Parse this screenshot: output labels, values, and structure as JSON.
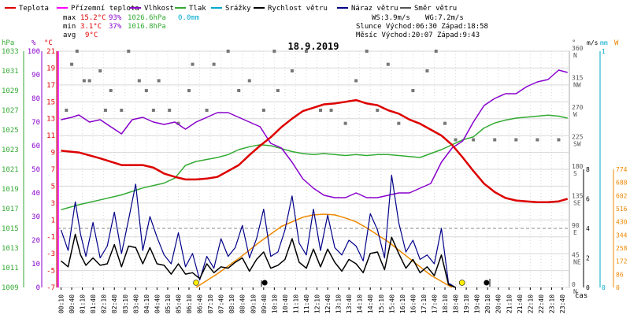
{
  "legend": [
    {
      "label": "Teplota",
      "color": "#dd0000"
    },
    {
      "label": "Přízemní teplota",
      "color": "#ff00ff"
    },
    {
      "label": "Vlhkost",
      "color": "#8800cc"
    },
    {
      "label": "Tlak",
      "color": "#33aa33"
    },
    {
      "label": "Srážky",
      "color": "#00aacc"
    },
    {
      "label": "Rychlost větru",
      "color": "#000000"
    },
    {
      "label": "Náraz větru",
      "color": "#000088"
    },
    {
      "label": "Směr větru",
      "color": "#555555"
    }
  ],
  "stats": {
    "max_label": "max",
    "max_temp": "15.2°C",
    "max_hum": "93%",
    "max_press": "1026.6hPa",
    "max_rain": "0.0mm",
    "min_label": "min",
    "min_temp": "3.1°C",
    "min_hum": "37%",
    "min_press": "1016.8hPa",
    "avg_label": "avg",
    "avg_temp": "9°C",
    "ws": "WS:3.9m/s",
    "wg": "WG:7.2m/s",
    "sun": "Slunce Východ:06:30   Západ:18:58",
    "moon": "Měsíc  Východ:20:07   Západ:9:43"
  },
  "axis_units": {
    "hpa": "hPa",
    "pct": "%",
    "degc": "°C",
    "deg": "°",
    "ms": "m/s",
    "mm": "mm",
    "w": "W",
    "cas": "čas"
  },
  "chart_data": {
    "type": "line",
    "title": "18.9.2019",
    "x_ticks": [
      "00:10",
      "00:40",
      "01:10",
      "01:40",
      "02:10",
      "02:40",
      "03:10",
      "03:40",
      "04:10",
      "04:40",
      "05:10",
      "05:40",
      "06:10",
      "06:40",
      "07:10",
      "07:40",
      "08:10",
      "08:40",
      "09:10",
      "09:40",
      "10:10",
      "10:40",
      "11:10",
      "11:40",
      "12:10",
      "12:40",
      "13:10",
      "13:40",
      "14:10",
      "14:40",
      "15:10",
      "15:40",
      "16:10",
      "16:40",
      "17:10",
      "17:40",
      "18:10",
      "18:40",
      "19:10",
      "19:40",
      "20:10",
      "20:40",
      "21:10",
      "21:40",
      "22:10",
      "22:40",
      "23:10",
      "23:40"
    ],
    "y_axes": {
      "pressure_hpa": [
        "1033",
        "1031",
        "1029",
        "1027",
        "1025",
        "1023",
        "1021",
        "1019",
        "1017",
        "1015",
        "1013",
        "1011",
        "1009"
      ],
      "humidity_pct": [
        "100",
        "90",
        "80",
        "70",
        "60",
        "50",
        "40",
        "30",
        "20",
        "10",
        "0"
      ],
      "temperature_c": [
        "21",
        "19",
        "17",
        "15",
        "13",
        "11",
        "9",
        "7",
        "5",
        "3",
        "1",
        "-1",
        "-3",
        "-5",
        "-7"
      ],
      "direction": [
        "360 N",
        "315 NW",
        "270 W",
        "225 SW",
        "180 S",
        "135 SE",
        "90 E",
        "45 NE",
        "0 N"
      ],
      "wind_ms": [
        "8",
        "6",
        "4",
        "2",
        "0"
      ],
      "rain_mm": [
        "1",
        "0"
      ],
      "radiation_w": [
        "774",
        "688",
        "602",
        "516",
        "430",
        "344",
        "258",
        "172",
        "86",
        "0"
      ]
    },
    "ylim_temp": [
      -7,
      21
    ],
    "series": [
      {
        "name": "Teplota",
        "color": "#dd0000",
        "x": [
          "00:10",
          "01:00",
          "02:00",
          "03:00",
          "04:00",
          "04:30",
          "05:00",
          "05:30",
          "06:00",
          "06:30",
          "07:00",
          "07:30",
          "08:00",
          "08:30",
          "09:00",
          "09:30",
          "10:00",
          "10:30",
          "11:00",
          "11:30",
          "12:00",
          "12:30",
          "13:00",
          "13:30",
          "14:00",
          "14:30",
          "15:00",
          "15:30",
          "16:00",
          "16:30",
          "17:00",
          "17:30",
          "18:00",
          "18:30",
          "19:00",
          "19:30",
          "20:00",
          "20:30",
          "21:00",
          "21:30",
          "22:00",
          "22:30",
          "23:00",
          "23:30",
          "23:55"
        ],
        "y": [
          9.2,
          9.0,
          8.3,
          7.5,
          7.5,
          7.2,
          6.5,
          6.1,
          5.8,
          5.8,
          5.9,
          6.1,
          6.8,
          7.5,
          8.7,
          9.8,
          10.8,
          12.0,
          13.0,
          13.9,
          14.3,
          14.7,
          14.8,
          15.0,
          15.2,
          14.8,
          14.6,
          14.0,
          13.6,
          12.9,
          12.4,
          11.7,
          11.0,
          9.9,
          8.4,
          6.8,
          5.3,
          4.3,
          3.6,
          3.3,
          3.2,
          3.1,
          3.1,
          3.2,
          3.5
        ]
      },
      {
        "name": "Vlhkost",
        "color": "#8800cc",
        "x": [
          "00:10",
          "00:40",
          "01:00",
          "01:30",
          "02:00",
          "02:30",
          "03:00",
          "03:30",
          "04:00",
          "04:30",
          "05:00",
          "05:30",
          "06:00",
          "06:30",
          "07:00",
          "07:30",
          "08:00",
          "08:30",
          "09:00",
          "09:30",
          "10:00",
          "10:30",
          "11:00",
          "11:30",
          "12:00",
          "12:30",
          "13:00",
          "13:30",
          "14:00",
          "14:30",
          "15:00",
          "15:30",
          "16:00",
          "16:30",
          "17:00",
          "17:30",
          "18:00",
          "18:30",
          "19:00",
          "19:30",
          "20:00",
          "20:30",
          "21:00",
          "21:30",
          "22:00",
          "22:30",
          "23:00",
          "23:30",
          "23:55"
        ],
        "y": [
          71,
          72,
          73,
          70,
          71,
          68,
          65,
          71,
          72,
          70,
          69,
          70,
          67,
          70,
          72,
          74,
          74,
          72,
          70,
          68,
          61,
          59,
          53,
          46,
          42,
          39,
          38,
          38,
          40,
          38,
          38,
          39,
          40,
          40,
          42,
          44,
          53,
          59,
          62,
          70,
          77,
          80,
          82,
          82,
          85,
          87,
          88,
          92,
          91
        ]
      },
      {
        "name": "Tlak",
        "color": "#33aa33",
        "x": [
          "00:10",
          "01:00",
          "02:00",
          "03:00",
          "04:00",
          "05:00",
          "05:30",
          "06:00",
          "06:30",
          "07:00",
          "07:30",
          "08:00",
          "08:30",
          "09:00",
          "09:30",
          "10:00",
          "10:30",
          "11:00",
          "11:30",
          "12:00",
          "12:30",
          "13:00",
          "13:30",
          "14:00",
          "14:30",
          "15:00",
          "15:30",
          "16:00",
          "16:30",
          "17:00",
          "17:30",
          "18:00",
          "18:30",
          "19:00",
          "19:30",
          "20:00",
          "20:30",
          "21:00",
          "21:30",
          "22:00",
          "22:30",
          "23:00",
          "23:30",
          "23:55"
        ],
        "y": [
          1016.9,
          1017.4,
          1017.9,
          1018.4,
          1019.1,
          1019.6,
          1020.1,
          1021.4,
          1021.8,
          1022.0,
          1022.2,
          1022.5,
          1023.0,
          1023.3,
          1023.5,
          1023.4,
          1023.1,
          1022.8,
          1022.6,
          1022.5,
          1022.6,
          1022.5,
          1022.4,
          1022.5,
          1022.4,
          1022.5,
          1022.5,
          1022.4,
          1022.3,
          1022.2,
          1022.6,
          1023.0,
          1023.5,
          1024.0,
          1024.3,
          1025.2,
          1025.7,
          1026.0,
          1026.2,
          1026.3,
          1026.4,
          1026.5,
          1026.4,
          1026.2
        ]
      },
      {
        "name": "Náraz větru",
        "color": "#000088",
        "x": [
          "00:10",
          "00:30",
          "00:50",
          "01:05",
          "01:20",
          "01:40",
          "02:00",
          "02:20",
          "02:40",
          "03:00",
          "03:20",
          "03:40",
          "04:00",
          "04:20",
          "04:40",
          "05:00",
          "05:20",
          "05:40",
          "06:00",
          "06:20",
          "06:40",
          "07:00",
          "07:20",
          "07:40",
          "08:00",
          "08:20",
          "08:40",
          "09:00",
          "09:20",
          "09:40",
          "10:00",
          "10:20",
          "10:40",
          "11:00",
          "11:20",
          "11:40",
          "12:00",
          "12:20",
          "12:40",
          "13:00",
          "13:20",
          "13:40",
          "14:00",
          "14:20",
          "14:40",
          "15:00",
          "15:20",
          "15:40",
          "16:00",
          "16:20",
          "16:40",
          "17:00",
          "17:20",
          "17:40",
          "18:00",
          "18:20",
          "18:40"
        ],
        "y": [
          3.9,
          2.5,
          5.8,
          3.6,
          2.1,
          4.4,
          2.0,
          2.8,
          5.1,
          2.3,
          4.6,
          7.0,
          2.5,
          4.8,
          3.4,
          2.2,
          1.6,
          3.7,
          1.4,
          2.3,
          0.5,
          2.1,
          1.3,
          3.3,
          2.1,
          2.7,
          4.2,
          2.0,
          3.3,
          5.3,
          2.1,
          2.4,
          3.9,
          6.2,
          3.0,
          2.2,
          5.3,
          2.5,
          4.9,
          2.7,
          2.2,
          3.2,
          2.8,
          1.8,
          5.0,
          3.9,
          2.0,
          7.6,
          4.4,
          2.4,
          3.2,
          1.9,
          2.2,
          1.6,
          4.0,
          0.3,
          0.0
        ]
      },
      {
        "name": "Rychlost větru",
        "color": "#000000",
        "x": [
          "00:10",
          "00:30",
          "00:50",
          "01:05",
          "01:20",
          "01:40",
          "02:00",
          "02:20",
          "02:40",
          "03:00",
          "03:20",
          "03:40",
          "04:00",
          "04:20",
          "04:40",
          "05:00",
          "05:20",
          "05:40",
          "06:00",
          "06:20",
          "06:40",
          "07:00",
          "07:20",
          "07:40",
          "08:00",
          "08:20",
          "08:40",
          "09:00",
          "09:20",
          "09:40",
          "10:00",
          "10:20",
          "10:40",
          "11:00",
          "11:20",
          "11:40",
          "12:00",
          "12:20",
          "12:40",
          "13:00",
          "13:20",
          "13:40",
          "14:00",
          "14:20",
          "14:40",
          "15:00",
          "15:20",
          "15:40",
          "16:00",
          "16:20",
          "16:40",
          "17:00",
          "17:20",
          "17:40",
          "18:00",
          "18:20",
          "18:40"
        ],
        "y": [
          1.8,
          1.4,
          3.6,
          2.2,
          1.5,
          2.0,
          1.5,
          1.6,
          2.9,
          1.4,
          2.8,
          2.7,
          1.6,
          2.7,
          1.6,
          1.5,
          0.9,
          1.6,
          0.9,
          1.0,
          0.6,
          1.6,
          1.0,
          1.4,
          1.3,
          1.7,
          2.0,
          1.1,
          1.9,
          2.4,
          1.3,
          1.5,
          1.9,
          3.3,
          1.7,
          1.3,
          2.6,
          1.4,
          2.6,
          1.7,
          1.1,
          1.9,
          1.6,
          1.0,
          2.3,
          2.4,
          1.2,
          3.4,
          2.3,
          1.3,
          1.9,
          1.0,
          1.4,
          0.8,
          2.2,
          0.2,
          0.0
        ]
      },
      {
        "name": "Radiation",
        "color": "#ee8800",
        "x": [
          "06:30",
          "07:30",
          "08:30",
          "09:30",
          "10:30",
          "11:30",
          "12:00",
          "12:30",
          "13:00",
          "13:30",
          "14:00",
          "14:30",
          "15:30",
          "16:30",
          "17:30",
          "18:30"
        ],
        "y": [
          0,
          90,
          190,
          300,
          400,
          460,
          475,
          480,
          475,
          455,
          430,
          390,
          300,
          190,
          80,
          0
        ]
      }
    ],
    "wind_direction_deg": [
      {
        "x": "00:25",
        "y": 270
      },
      {
        "x": "00:40",
        "y": 340
      },
      {
        "x": "00:55",
        "y": 360
      },
      {
        "x": "01:15",
        "y": 315
      },
      {
        "x": "01:30",
        "y": 315
      },
      {
        "x": "02:00",
        "y": 330
      },
      {
        "x": "02:15",
        "y": 270
      },
      {
        "x": "02:30",
        "y": 300
      },
      {
        "x": "03:00",
        "y": 270
      },
      {
        "x": "03:20",
        "y": 360
      },
      {
        "x": "03:50",
        "y": 315
      },
      {
        "x": "04:10",
        "y": 300
      },
      {
        "x": "04:30",
        "y": 270
      },
      {
        "x": "04:45",
        "y": 315
      },
      {
        "x": "05:15",
        "y": 270
      },
      {
        "x": "05:40",
        "y": 250
      },
      {
        "x": "06:10",
        "y": 300
      },
      {
        "x": "06:20",
        "y": 340
      },
      {
        "x": "07:00",
        "y": 270
      },
      {
        "x": "07:20",
        "y": 340
      },
      {
        "x": "08:00",
        "y": 360
      },
      {
        "x": "08:30",
        "y": 300
      },
      {
        "x": "09:00",
        "y": 315
      },
      {
        "x": "09:40",
        "y": 270
      },
      {
        "x": "10:10",
        "y": 360
      },
      {
        "x": "10:20",
        "y": 300
      },
      {
        "x": "11:00",
        "y": 330
      },
      {
        "x": "11:40",
        "y": 360
      },
      {
        "x": "12:20",
        "y": 270
      },
      {
        "x": "12:50",
        "y": 270
      },
      {
        "x": "13:30",
        "y": 250
      },
      {
        "x": "14:00",
        "y": 315
      },
      {
        "x": "14:30",
        "y": 360
      },
      {
        "x": "15:00",
        "y": 270
      },
      {
        "x": "15:30",
        "y": 340
      },
      {
        "x": "16:00",
        "y": 250
      },
      {
        "x": "16:40",
        "y": 300
      },
      {
        "x": "17:20",
        "y": 330
      },
      {
        "x": "17:45",
        "y": 360
      },
      {
        "x": "18:10",
        "y": 250
      },
      {
        "x": "18:40",
        "y": 225
      },
      {
        "x": "19:30",
        "y": 225
      },
      {
        "x": "20:30",
        "y": 225
      },
      {
        "x": "21:30",
        "y": 225
      },
      {
        "x": "22:30",
        "y": 225
      },
      {
        "x": "23:30",
        "y": 225
      }
    ],
    "markers": {
      "sunrise": "06:30",
      "sunset": "18:58",
      "moonrise": "20:07",
      "moonset": "9:43"
    }
  }
}
